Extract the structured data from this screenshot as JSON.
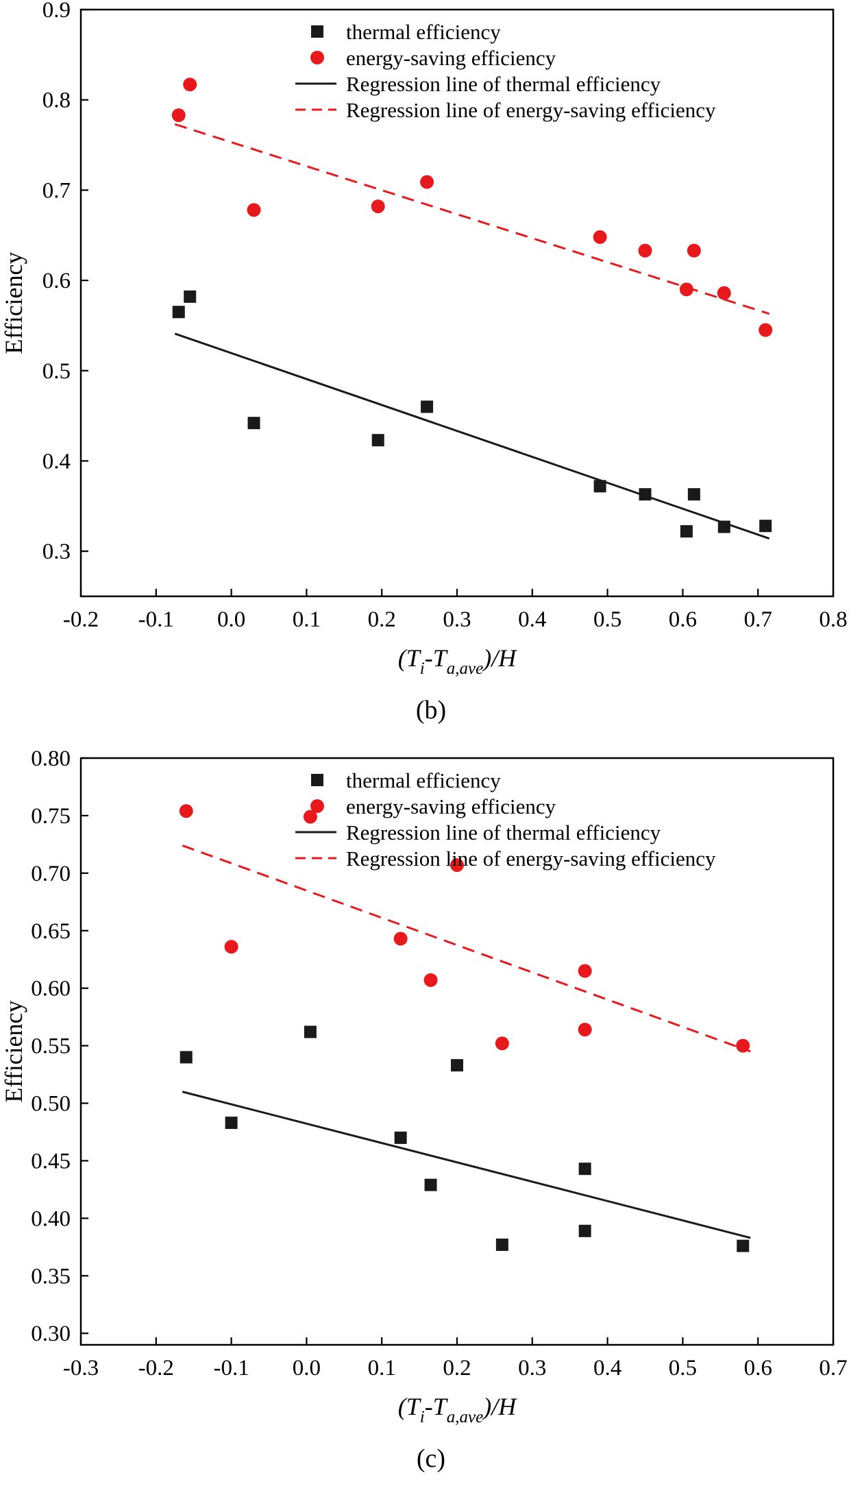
{
  "page": {
    "background": "#ffffff",
    "text_color": "#000000"
  },
  "colors": {
    "thermal_black": "#1a1a1a",
    "energy_red": "#e8191c"
  },
  "chart_data": [
    {
      "type": "scatter",
      "caption": "(b)",
      "title": "",
      "ylabel": "Efficiency",
      "xlabel": {
        "plain": "(Ti-Ta,ave)/H",
        "parts": [
          {
            "t": "(T",
            "sub": false
          },
          {
            "t": "i",
            "sub": true
          },
          {
            "t": "-T",
            "sub": false
          },
          {
            "t": "a,ave",
            "sub": true
          },
          {
            "t": ")/H",
            "sub": false
          }
        ]
      },
      "xlim": [
        -0.2,
        0.8
      ],
      "ylim": [
        0.25,
        0.9
      ],
      "grid": false,
      "legend_position": "top-center-inside",
      "xticks": {
        "values": [
          -0.2,
          -0.1,
          0.0,
          0.1,
          0.2,
          0.3,
          0.4,
          0.5,
          0.6,
          0.7,
          0.8
        ],
        "labels": [
          "-0.2",
          "-0.1",
          "0.0",
          "0.1",
          "0.2",
          "0.3",
          "0.4",
          "0.5",
          "0.6",
          "0.7",
          "0.8"
        ]
      },
      "yticks": {
        "values": [
          0.3,
          0.4,
          0.5,
          0.6,
          0.7,
          0.8,
          0.9
        ],
        "labels": [
          "0.3",
          "0.4",
          "0.5",
          "0.6",
          "0.7",
          "0.8",
          "0.9"
        ]
      },
      "series": [
        {
          "name": "thermal efficiency",
          "type": "scatter",
          "marker": "square",
          "color": "#1a1a1a",
          "points": [
            [
              -0.07,
              0.565
            ],
            [
              -0.055,
              0.582
            ],
            [
              0.03,
              0.442
            ],
            [
              0.195,
              0.423
            ],
            [
              0.26,
              0.46
            ],
            [
              0.49,
              0.372
            ],
            [
              0.55,
              0.363
            ],
            [
              0.615,
              0.363
            ],
            [
              0.605,
              0.322
            ],
            [
              0.655,
              0.327
            ],
            [
              0.71,
              0.328
            ]
          ]
        },
        {
          "name": "energy-saving efficiency",
          "type": "scatter",
          "marker": "circle",
          "color": "#e8191c",
          "points": [
            [
              -0.07,
              0.783
            ],
            [
              -0.055,
              0.817
            ],
            [
              0.03,
              0.678
            ],
            [
              0.195,
              0.682
            ],
            [
              0.26,
              0.709
            ],
            [
              0.49,
              0.648
            ],
            [
              0.55,
              0.633
            ],
            [
              0.615,
              0.633
            ],
            [
              0.605,
              0.59
            ],
            [
              0.655,
              0.586
            ],
            [
              0.71,
              0.545
            ]
          ]
        },
        {
          "name": "Regression line of thermal efficiency",
          "type": "line",
          "dash": "solid",
          "color": "#1a1a1a",
          "points": [
            [
              -0.075,
              0.541
            ],
            [
              0.715,
              0.314
            ]
          ]
        },
        {
          "name": "Regression line of energy-saving efficiency",
          "type": "line",
          "dash": "dashed",
          "color": "#e8191c",
          "points": [
            [
              -0.075,
              0.773
            ],
            [
              0.715,
              0.563
            ]
          ]
        }
      ]
    },
    {
      "type": "scatter",
      "caption": "(c)",
      "title": "",
      "ylabel": "Efficiency",
      "xlabel": {
        "plain": "(Ti-Ta,ave)/H",
        "parts": [
          {
            "t": "(T",
            "sub": false
          },
          {
            "t": "i",
            "sub": true
          },
          {
            "t": "-T",
            "sub": false
          },
          {
            "t": "a,ave",
            "sub": true
          },
          {
            "t": ")/H",
            "sub": false
          }
        ]
      },
      "xlim": [
        -0.3,
        0.7
      ],
      "ylim": [
        0.29,
        0.8
      ],
      "grid": false,
      "legend_position": "top-center-inside",
      "xticks": {
        "values": [
          -0.3,
          -0.2,
          -0.1,
          0.0,
          0.1,
          0.2,
          0.3,
          0.4,
          0.5,
          0.6,
          0.7
        ],
        "labels": [
          "-0.3",
          "-0.2",
          "-0.1",
          "0.0",
          "0.1",
          "0.2",
          "0.3",
          "0.4",
          "0.5",
          "0.6",
          "0.7"
        ]
      },
      "yticks": {
        "values": [
          0.3,
          0.35,
          0.4,
          0.45,
          0.5,
          0.55,
          0.6,
          0.65,
          0.7,
          0.75,
          0.8
        ],
        "labels": [
          "0.30",
          "0.35",
          "0.40",
          "0.45",
          "0.50",
          "0.55",
          "0.60",
          "0.65",
          "0.70",
          "0.75",
          "0.80"
        ]
      },
      "series": [
        {
          "name": "thermal efficiency",
          "type": "scatter",
          "marker": "square",
          "color": "#1a1a1a",
          "points": [
            [
              -0.16,
              0.54
            ],
            [
              -0.1,
              0.483
            ],
            [
              0.005,
              0.562
            ],
            [
              0.125,
              0.47
            ],
            [
              0.165,
              0.429
            ],
            [
              0.2,
              0.533
            ],
            [
              0.26,
              0.377
            ],
            [
              0.37,
              0.443
            ],
            [
              0.37,
              0.389
            ],
            [
              0.58,
              0.376
            ]
          ]
        },
        {
          "name": "energy-saving efficiency",
          "type": "scatter",
          "marker": "circle",
          "color": "#e8191c",
          "points": [
            [
              -0.16,
              0.754
            ],
            [
              -0.1,
              0.636
            ],
            [
              0.005,
              0.749
            ],
            [
              0.125,
              0.643
            ],
            [
              0.165,
              0.607
            ],
            [
              0.2,
              0.707
            ],
            [
              0.26,
              0.552
            ],
            [
              0.37,
              0.615
            ],
            [
              0.37,
              0.564
            ],
            [
              0.58,
              0.55
            ]
          ]
        },
        {
          "name": "Regression line of thermal efficiency",
          "type": "line",
          "dash": "solid",
          "color": "#1a1a1a",
          "points": [
            [
              -0.165,
              0.51
            ],
            [
              0.59,
              0.383
            ]
          ]
        },
        {
          "name": "Regression line of energy-saving efficiency",
          "type": "line",
          "dash": "dashed",
          "color": "#e8191c",
          "points": [
            [
              -0.165,
              0.724
            ],
            [
              0.59,
              0.545
            ]
          ]
        }
      ]
    }
  ]
}
